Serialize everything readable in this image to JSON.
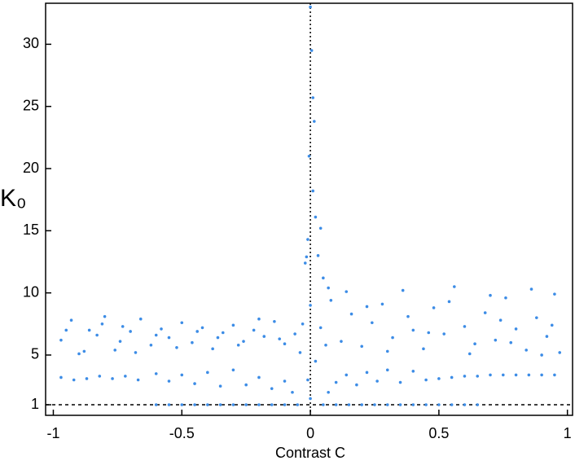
{
  "chart_data": {
    "type": "scatter",
    "x_label": "Contrast C",
    "y_label": "K₀",
    "xlim": [
      -1.03,
      1.02
    ],
    "ylim": [
      0.15,
      33.3
    ],
    "xticks": [
      -1,
      -0.5,
      0,
      0.5,
      1
    ],
    "yticks": [
      1,
      5,
      10,
      15,
      20,
      25,
      30
    ],
    "hline": 1,
    "vline": 0,
    "series": [
      {
        "color": "#3c8ce6",
        "x": [
          -0.97,
          -0.93,
          -0.9,
          -0.86,
          -0.83,
          -0.8,
          -0.76,
          -0.73,
          -0.7,
          -0.66,
          -0.62,
          -0.58,
          -0.55,
          -0.5,
          -0.46,
          -0.42,
          -0.38,
          -0.34,
          -0.3,
          -0.26,
          -0.22,
          -0.18,
          -0.14,
          -0.1,
          -0.06,
          -0.03,
          -0.95,
          -0.88,
          -0.81,
          -0.74,
          -0.68,
          -0.6,
          -0.52,
          -0.44,
          -0.36,
          -0.28,
          -0.2,
          -0.12,
          -0.04,
          0.04,
          0.08,
          0.12,
          0.16,
          0.2,
          0.24,
          0.28,
          0.32,
          0.36,
          0.4,
          0.44,
          0.48,
          0.52,
          0.56,
          0.6,
          0.64,
          0.68,
          0.72,
          0.76,
          0.8,
          0.84,
          0.88,
          0.92,
          0.95,
          0.97,
          0.06,
          0.14,
          0.22,
          0.3,
          0.38,
          0.46,
          0.54,
          0.62,
          0.7,
          0.78,
          0.86,
          0.94,
          0.9,
          0.74,
          -0.97,
          -0.92,
          -0.87,
          -0.82,
          -0.77,
          -0.72,
          -0.67,
          -0.6,
          -0.55,
          -0.5,
          -0.45,
          -0.4,
          -0.35,
          -0.3,
          -0.25,
          -0.2,
          -0.15,
          -0.1,
          -0.07,
          0.07,
          0.1,
          0.14,
          0.18,
          0.22,
          0.26,
          0.3,
          0.35,
          0.4,
          0.45,
          0.5,
          0.55,
          0.6,
          0.65,
          0.7,
          0.75,
          0.8,
          0.85,
          0.9,
          0.95,
          -0.6,
          -0.55,
          -0.5,
          -0.45,
          -0.4,
          -0.35,
          -0.3,
          -0.25,
          -0.2,
          -0.15,
          -0.1,
          -0.05,
          0.05,
          0.1,
          0.15,
          0.2,
          0.25,
          0.3,
          0.35,
          0.4,
          0.45,
          0.5,
          0.55,
          0.6,
          0.65,
          0,
          0.005,
          0.01,
          -0.005,
          0.01,
          0.02,
          -0.01,
          0.03,
          -0.02,
          0.05,
          0.07,
          0,
          0.02,
          -0.01,
          0,
          0.04,
          0.015,
          -0.015
        ],
        "y": [
          6.2,
          7.8,
          5.1,
          7.0,
          6.6,
          8.1,
          5.4,
          7.3,
          6.9,
          7.9,
          5.8,
          7.1,
          6.4,
          7.6,
          6.0,
          7.2,
          5.5,
          6.8,
          7.4,
          6.1,
          7.0,
          6.5,
          7.7,
          5.9,
          6.7,
          7.5,
          7.0,
          5.3,
          7.5,
          6.1,
          5.2,
          6.6,
          5.6,
          6.9,
          6.4,
          5.8,
          7.9,
          6.3,
          5.2,
          7.2,
          9.4,
          6.1,
          8.3,
          5.7,
          7.6,
          9.1,
          6.4,
          10.2,
          7.0,
          5.5,
          8.8,
          6.7,
          10.5,
          7.3,
          5.9,
          8.4,
          6.2,
          9.6,
          7.1,
          5.4,
          8.0,
          6.5,
          9.9,
          5.2,
          5.8,
          10.1,
          8.9,
          5.3,
          8.1,
          6.8,
          9.3,
          5.1,
          9.8,
          6.0,
          10.3,
          7.4,
          5.0,
          7.8,
          3.2,
          3.0,
          3.1,
          3.3,
          3.1,
          3.3,
          3.0,
          3.5,
          2.9,
          3.4,
          2.7,
          3.6,
          2.5,
          3.8,
          2.6,
          3.2,
          2.3,
          2.9,
          2.0,
          2.0,
          2.8,
          3.4,
          2.6,
          3.6,
          2.9,
          3.8,
          2.8,
          3.7,
          3.0,
          3.1,
          3.2,
          3.3,
          3.3,
          3.4,
          3.4,
          3.4,
          3.4,
          3.4,
          3.4,
          1,
          1,
          1,
          1,
          1,
          1,
          1,
          1,
          1,
          1,
          1,
          1,
          1,
          1,
          1,
          1,
          1,
          1,
          1,
          1,
          1,
          1,
          1,
          1,
          1,
          33,
          29.5,
          25.7,
          21.0,
          18.2,
          16.1,
          14.3,
          13.0,
          12.4,
          11.2,
          10.4,
          9.0,
          4.5,
          3.0,
          1.5,
          15.2,
          23.8,
          12.9
        ]
      }
    ]
  }
}
